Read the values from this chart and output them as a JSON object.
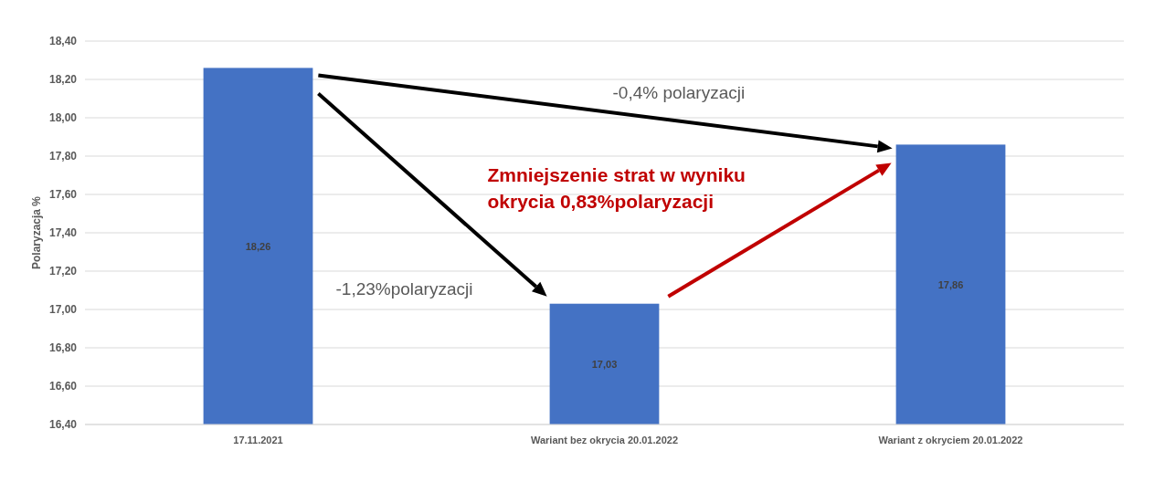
{
  "chart_data": {
    "type": "bar",
    "ylabel": "Polaryzacja %",
    "categories": [
      "17.11.2021",
      "Wariant bez okrycia 20.01.2022",
      "Wariant z okryciem 20.01.2022"
    ],
    "values": [
      18.26,
      17.03,
      17.86
    ],
    "color": "#4472c4",
    "value_labels": [
      "18,26",
      "17,03",
      "17,86"
    ],
    "ylim": [
      16.4,
      18.4
    ],
    "yticks": [
      {
        "value": 16.4,
        "label": "16,40"
      },
      {
        "value": 16.6,
        "label": "16,60"
      },
      {
        "value": 16.8,
        "label": "16,80"
      },
      {
        "value": 17.0,
        "label": "17,00"
      },
      {
        "value": 17.2,
        "label": "17,20"
      },
      {
        "value": 17.4,
        "label": "17,40"
      },
      {
        "value": 17.6,
        "label": "17,60"
      },
      {
        "value": 17.8,
        "label": "17,80"
      },
      {
        "value": 18.0,
        "label": "18,00"
      },
      {
        "value": 18.2,
        "label": "18,20"
      },
      {
        "value": 18.4,
        "label": "18,40"
      }
    ],
    "grid": "y",
    "annotations": [
      "-0,4% polaryzacji",
      "-1,23%polaryzacji",
      "Zmniejszenie strat w wyniku",
      "okrycia 0,83%polaryzacji"
    ]
  }
}
